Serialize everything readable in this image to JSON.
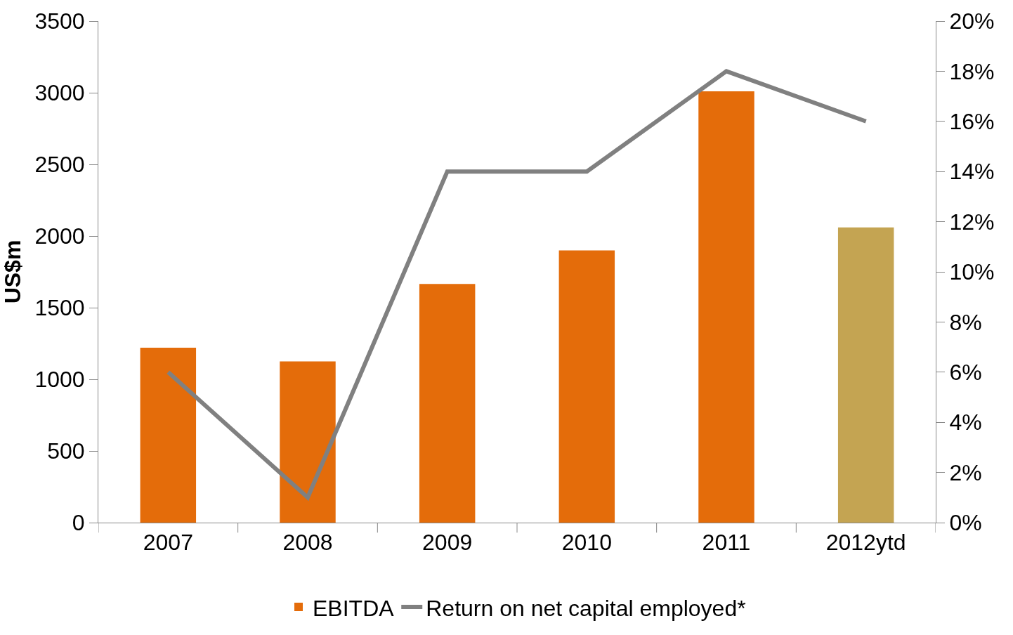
{
  "chart_data": {
    "type": "bar",
    "ylabel": "US$m",
    "categories": [
      "2007",
      "2008",
      "2009",
      "2010",
      "2011",
      "2012ytd"
    ],
    "series": [
      {
        "name": "EBITDA",
        "color": "#e46c0a",
        "colors": [
          "#e46c0a",
          "#e46c0a",
          "#e46c0a",
          "#e46c0a",
          "#e46c0a",
          "#c4a452"
        ],
        "values": [
          1220,
          1125,
          1665,
          1900,
          3010,
          2060
        ]
      },
      {
        "name": "Return on net capital employed*",
        "type": "line",
        "axis": "y2",
        "color": "#808080",
        "values": [
          6,
          1,
          14,
          14,
          18,
          16
        ]
      }
    ],
    "ylim": [
      0,
      3500
    ],
    "yticks": [
      0,
      500,
      1000,
      1500,
      2000,
      2500,
      3000,
      3500
    ],
    "y2lim": [
      0,
      20
    ],
    "y2ticks": [
      {
        "value": 0,
        "label": "0%"
      },
      {
        "value": 2,
        "label": "2%"
      },
      {
        "value": 4,
        "label": "4%"
      },
      {
        "value": 6,
        "label": "6%"
      },
      {
        "value": 8,
        "label": "8%"
      },
      {
        "value": 10,
        "label": "10%"
      },
      {
        "value": 12,
        "label": "12%"
      },
      {
        "value": 14,
        "label": "14%"
      },
      {
        "value": 16,
        "label": "16%"
      },
      {
        "value": 18,
        "label": "18%"
      },
      {
        "value": 20,
        "label": "20%"
      }
    ],
    "legend": "bottom",
    "marker": "none",
    "line_style": "solid"
  }
}
